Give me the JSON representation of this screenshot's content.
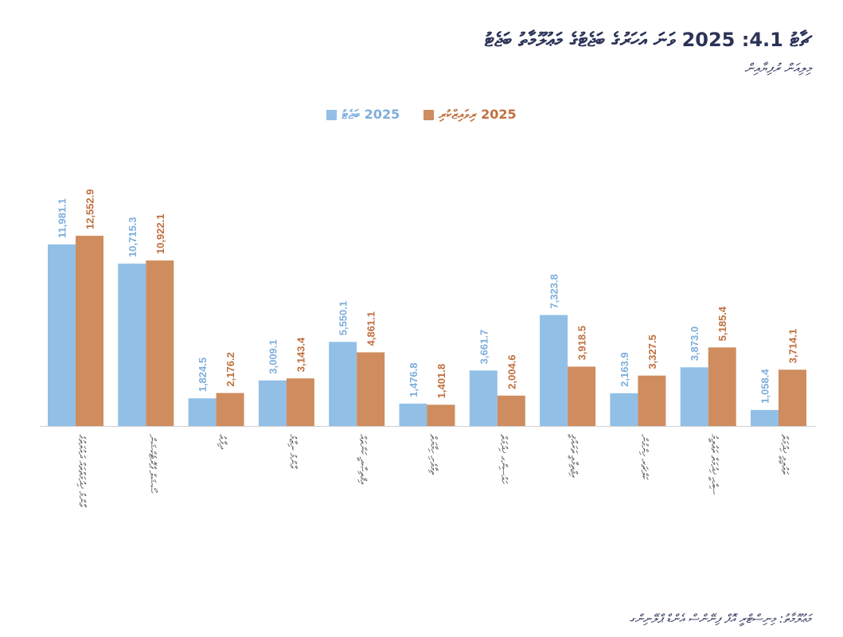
{
  "title": "ޗާޓު 4.1: 2025 ވަނަ އަހަރުގެ ބަޖެޓުގެ މަޢުލޫމާތު ބަޖެޓު",
  "subtitle": "މިލިއަން ރުފިޔާއިން",
  "source": "މަޢުލޫމާތު: މިނިސްޓްރީ އޮފް ފިނޭންސް އެންޑް ޕްލޭނިންގ",
  "colors": {
    "budget": "#92bfe6",
    "revised": "#cf8c5e",
    "budget_text": "#7eaedc",
    "revised_text": "#c0703f",
    "title": "#2c3357"
  },
  "chart_data": {
    "type": "bar",
    "title": "ޗާޓު 4.1: 2025 ވަނަ އަހަރުގެ ބަޖެޓުގެ މަޢުލޫމާތު ބަޖެޓު",
    "ylabel": "މިލިއަން ރުފިޔާއިން",
    "ylim": [
      0,
      13000
    ],
    "grid": false,
    "legend_position": "top-center",
    "categories": [
      "ޢާންމު ޚިދުމަތްތައް ދައުލަތުގެ",
      "ސޯޝަލް ޕްރޮޓެކްޝަން",
      "ދިފާޢު",
      "ޢާންމު ނިޒާމު",
      "އިޤްތިޞާދީ ކަންތައް",
      "ތިމާވެށި ހިމާޔަތް",
      "ހައުސިންގ ޚިދުމަތް",
      "އިޖްތިމާޢީ ތަރައްޤީ",
      "ކަލްޗަރ ހިންގުން",
      "ސިއްޙީ ޚިދުމަތް ތަޢުލީމު",
      "ތަޢުލީމީ ޚިދުމަތް"
    ],
    "series": [
      {
        "name": "2025 ބަޖެޓު",
        "values": [
          11981.1,
          10715.3,
          1824.5,
          3009.1,
          5550.1,
          1476.8,
          3661.7,
          7323.8,
          2163.9,
          3873.0,
          1058.4
        ],
        "labels": [
          "11,981.1",
          "10,715.3",
          "1,824.5",
          "3,009.1",
          "5,550.1",
          "1,476.8",
          "3,661.7",
          "7,323.8",
          "2,163.9",
          "3,873.0",
          "1,058.4"
        ]
      },
      {
        "name": "2025 ރިވައިޒްކުރި",
        "values": [
          12552.9,
          10922.1,
          2176.2,
          3143.4,
          4861.1,
          1401.8,
          2004.6,
          3918.5,
          3327.5,
          5185.4,
          3714.1
        ],
        "labels": [
          "12,552.9",
          "10,922.1",
          "2,176.2",
          "3,143.4",
          "4,861.1",
          "1,401.8",
          "2,004.6",
          "3,918.5",
          "3,327.5",
          "5,185.4",
          "3,714.1"
        ]
      }
    ]
  }
}
